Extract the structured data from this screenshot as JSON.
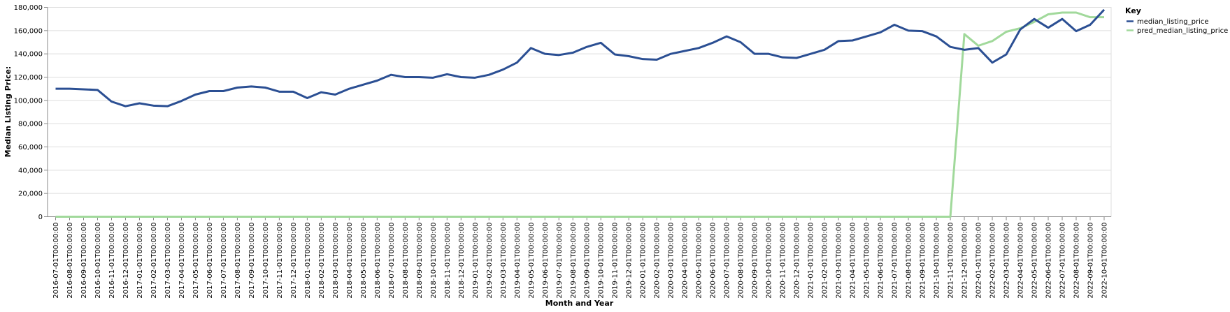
{
  "chart_data": {
    "type": "line",
    "xlabel": "Month and Year",
    "ylabel": "Median Listing Price:",
    "ylim": [
      0,
      180000
    ],
    "yticks": [
      "0",
      "20,000",
      "40,000",
      "60,000",
      "80,000",
      "100,000",
      "120,000",
      "140,000",
      "160,000",
      "180,000"
    ],
    "grid": true,
    "legend_title": "Key",
    "legend_position": "top-right",
    "x": [
      "2016-07-01T00:00:00",
      "2016-08-01T00:00:00",
      "2016-09-01T00:00:00",
      "2016-10-01T00:00:00",
      "2016-11-01T00:00:00",
      "2016-12-01T00:00:00",
      "2017-01-01T00:00:00",
      "2017-02-01T00:00:00",
      "2017-03-01T00:00:00",
      "2017-04-01T00:00:00",
      "2017-05-01T00:00:00",
      "2017-06-01T00:00:00",
      "2017-07-01T00:00:00",
      "2017-08-01T00:00:00",
      "2017-09-01T00:00:00",
      "2017-10-01T00:00:00",
      "2017-11-01T00:00:00",
      "2017-12-01T00:00:00",
      "2018-01-01T00:00:00",
      "2018-02-01T00:00:00",
      "2018-03-01T00:00:00",
      "2018-04-01T00:00:00",
      "2018-05-01T00:00:00",
      "2018-06-01T00:00:00",
      "2018-07-01T00:00:00",
      "2018-08-01T00:00:00",
      "2018-09-01T00:00:00",
      "2018-10-01T00:00:00",
      "2018-11-01T00:00:00",
      "2018-12-01T00:00:00",
      "2019-01-01T00:00:00",
      "2019-02-01T00:00:00",
      "2019-03-01T00:00:00",
      "2019-04-01T00:00:00",
      "2019-05-01T00:00:00",
      "2019-06-01T00:00:00",
      "2019-07-01T00:00:00",
      "2019-08-01T00:00:00",
      "2019-09-01T00:00:00",
      "2019-10-01T00:00:00",
      "2019-11-01T00:00:00",
      "2019-12-01T00:00:00",
      "2020-01-01T00:00:00",
      "2020-02-01T00:00:00",
      "2020-03-01T00:00:00",
      "2020-04-01T00:00:00",
      "2020-05-01T00:00:00",
      "2020-06-01T00:00:00",
      "2020-07-01T00:00:00",
      "2020-08-01T00:00:00",
      "2020-09-01T00:00:00",
      "2020-10-01T00:00:00",
      "2020-11-01T00:00:00",
      "2020-12-01T00:00:00",
      "2021-01-01T00:00:00",
      "2021-02-01T00:00:00",
      "2021-03-01T00:00:00",
      "2021-04-01T00:00:00",
      "2021-05-01T00:00:00",
      "2021-06-01T00:00:00",
      "2021-07-01T00:00:00",
      "2021-08-01T00:00:00",
      "2021-09-01T00:00:00",
      "2021-10-01T00:00:00",
      "2021-11-01T00:00:00",
      "2021-12-01T00:00:00",
      "2022-01-01T00:00:00",
      "2022-02-01T00:00:00",
      "2022-03-01T00:00:00",
      "2022-04-01T00:00:00",
      "2022-05-01T00:00:00",
      "2022-06-01T00:00:00",
      "2022-07-01T00:00:00",
      "2022-08-01T00:00:00",
      "2022-09-01T00:00:00",
      "2022-10-01T00:00:00"
    ],
    "series": [
      {
        "name": "median_listing_price",
        "color": "#2b4f93",
        "values": [
          110000,
          110000,
          109500,
          109000,
          99000,
          95000,
          97500,
          95500,
          95000,
          99500,
          105000,
          108000,
          108000,
          111000,
          112000,
          111000,
          107500,
          107500,
          102000,
          107000,
          105000,
          110000,
          113500,
          117000,
          122000,
          120000,
          120000,
          119500,
          122500,
          120000,
          119500,
          122000,
          126500,
          132500,
          145000,
          140000,
          139000,
          141000,
          146000,
          149500,
          139500,
          138000,
          135500,
          135000,
          140000,
          142500,
          145000,
          149500,
          155000,
          150000,
          140000,
          140000,
          137000,
          136500,
          140000,
          143500,
          151000,
          151500,
          155000,
          158500,
          165000,
          160000,
          159500,
          155000,
          146000,
          143500,
          145000,
          132500,
          139500,
          161000,
          170000,
          162500,
          170000,
          159500,
          165000,
          178000
        ]
      },
      {
        "name": "pred_median_listing_price",
        "color": "#a1d99b",
        "values": [
          0,
          0,
          0,
          0,
          0,
          0,
          0,
          0,
          0,
          0,
          0,
          0,
          0,
          0,
          0,
          0,
          0,
          0,
          0,
          0,
          0,
          0,
          0,
          0,
          0,
          0,
          0,
          0,
          0,
          0,
          0,
          0,
          0,
          0,
          0,
          0,
          0,
          0,
          0,
          0,
          0,
          0,
          0,
          0,
          0,
          0,
          0,
          0,
          0,
          0,
          0,
          0,
          0,
          0,
          0,
          0,
          0,
          0,
          0,
          0,
          0,
          0,
          0,
          0,
          0,
          157000,
          147000,
          151000,
          159000,
          162000,
          167500,
          174000,
          175500,
          175500,
          171500,
          171500
        ]
      }
    ]
  }
}
